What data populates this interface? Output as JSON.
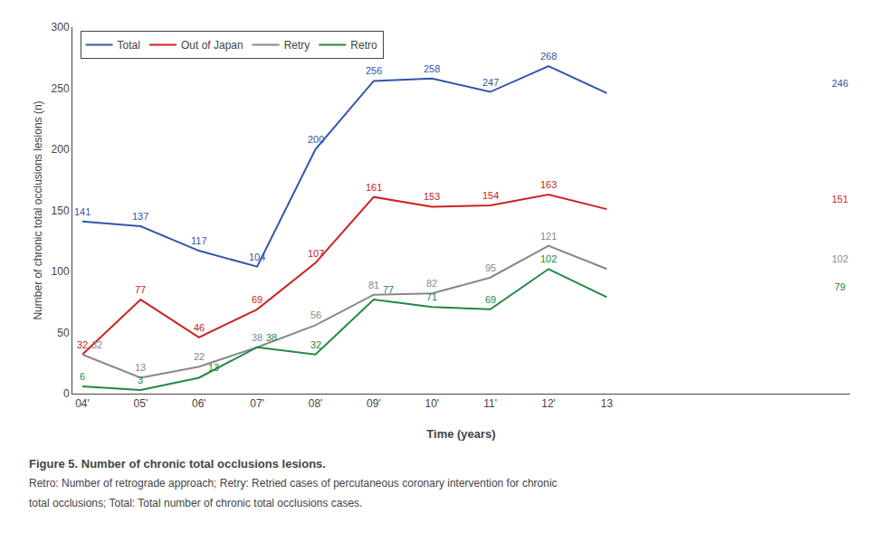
{
  "chart_data": {
    "type": "line",
    "categories": [
      "04'",
      "05'",
      "06'",
      "07'",
      "08'",
      "09'",
      "10'",
      "11'",
      "12'",
      "13"
    ],
    "series": [
      {
        "name": "Total",
        "color": "#3355aa",
        "values": [
          141,
          137,
          117,
          104,
          200,
          256,
          258,
          247,
          268,
          246
        ]
      },
      {
        "name": "Out of Japan",
        "color": "#cc2222",
        "values": [
          32,
          77,
          46,
          69,
          107,
          161,
          153,
          154,
          163,
          151
        ]
      },
      {
        "name": "Retry",
        "color": "#888888",
        "values": [
          32,
          13,
          22,
          38,
          56,
          81,
          82,
          95,
          121,
          102
        ]
      },
      {
        "name": "Retro",
        "color": "#228844",
        "values": [
          6,
          3,
          13,
          38,
          32,
          77,
          71,
          69,
          102,
          79
        ]
      }
    ],
    "xlabel": "Time (years)",
    "ylabel": "Number of chronic total occlusions lesions (n)",
    "ylim": [
      0,
      300
    ],
    "yticks": [
      0,
      50,
      100,
      150,
      200,
      250,
      300
    ],
    "grid": false,
    "legend": "upper left",
    "data_labels": true,
    "annotations": [
      "Figure 5. Number of chronic total occlusions lesions.",
      "Retro: Number of retrograde approach; Retry: Retried cases of percutaneous coronary intervention for chronic",
      "total occlusions; Total: Total number of chronic total occlusions cases."
    ]
  }
}
